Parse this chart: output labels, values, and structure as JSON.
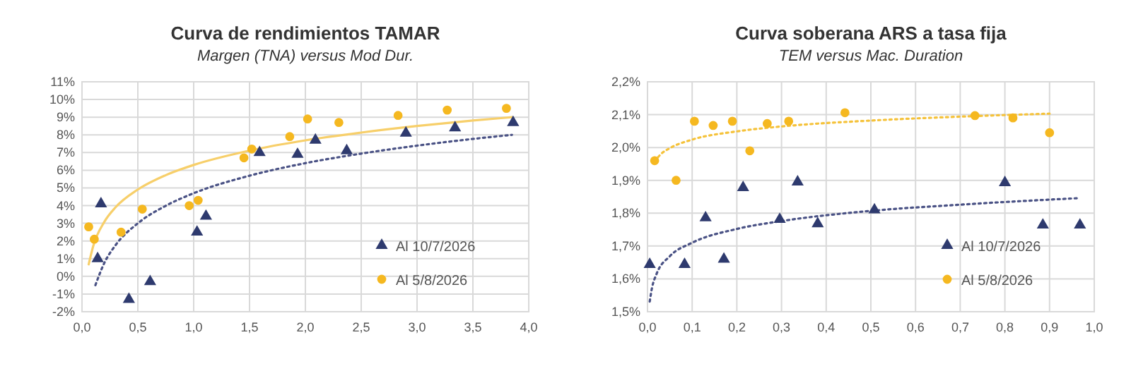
{
  "chart_data": [
    {
      "type": "scatter",
      "title": "Curva de rendimientos TAMAR",
      "subtitle": "Margen (TNA) versus Mod Dur.",
      "xlim": [
        0,
        4
      ],
      "xticks": [
        {
          "value": 0,
          "label": "0,0"
        },
        {
          "value": 0.5,
          "label": "0,5"
        },
        {
          "value": 1,
          "label": "1,0"
        },
        {
          "value": 1.5,
          "label": "1,5"
        },
        {
          "value": 2,
          "label": "2,0"
        },
        {
          "value": 2.5,
          "label": "2,5"
        },
        {
          "value": 3,
          "label": "3,0"
        },
        {
          "value": 3.5,
          "label": "3,5"
        },
        {
          "value": 4,
          "label": "4,0"
        }
      ],
      "ylim": [
        -2,
        11
      ],
      "yticks": [
        {
          "value": -2,
          "label": "-2%"
        },
        {
          "value": -1,
          "label": "-1%"
        },
        {
          "value": 0,
          "label": "0%"
        },
        {
          "value": 1,
          "label": "1%"
        },
        {
          "value": 2,
          "label": "2%"
        },
        {
          "value": 3,
          "label": "3%"
        },
        {
          "value": 4,
          "label": "4%"
        },
        {
          "value": 5,
          "label": "5%"
        },
        {
          "value": 6,
          "label": "6%"
        },
        {
          "value": 7,
          "label": "7%"
        },
        {
          "value": 8,
          "label": "8%"
        },
        {
          "value": 9,
          "label": "9%"
        },
        {
          "value": 10,
          "label": "10%"
        },
        {
          "value": 11,
          "label": "11%"
        }
      ],
      "grid": true,
      "legend": "bottom right",
      "series": [
        {
          "type": "line",
          "color": "#f7cf6a",
          "line_style": "solid",
          "x": [
            0.06,
            0.1,
            0.2,
            0.3,
            0.5,
            0.75,
            1,
            1.5,
            2,
            2.5,
            3,
            3.5,
            3.85
          ],
          "values": [
            0.68,
            1.7,
            3.08,
            3.9,
            4.91,
            5.72,
            6.3,
            7.11,
            7.69,
            8.13,
            8.5,
            8.81,
            9.0
          ]
        },
        {
          "type": "line",
          "color": "#4a5285",
          "line_style": "dotted",
          "x": [
            0.12,
            0.2,
            0.3,
            0.5,
            0.75,
            1,
            1.5,
            2,
            2.5,
            3,
            3.5,
            3.85
          ],
          "values": [
            -0.5,
            0.76,
            1.76,
            3.0,
            3.99,
            4.7,
            5.69,
            6.4,
            6.94,
            7.39,
            7.77,
            8.0
          ]
        },
        {
          "name": "Al 10/7/2026",
          "marker": "triangle",
          "color": "#2e3a6e",
          "x": [
            0.14,
            0.17,
            0.42,
            0.61,
            1.03,
            1.11,
            1.59,
            1.93,
            2.09,
            2.37,
            2.9,
            3.34,
            3.86
          ],
          "values": [
            1.0,
            4.1,
            -1.3,
            -0.3,
            2.5,
            3.4,
            7.0,
            6.9,
            7.7,
            7.1,
            8.1,
            8.4,
            8.7
          ]
        },
        {
          "name": "Al 5/8/2026",
          "marker": "circle",
          "color": "#f5b820",
          "x": [
            0.06,
            0.11,
            0.35,
            0.54,
            0.96,
            1.04,
            1.45,
            1.52,
            1.86,
            2.02,
            2.3,
            2.83,
            3.27,
            3.8
          ],
          "values": [
            2.8,
            2.1,
            2.5,
            3.8,
            4.0,
            4.3,
            6.7,
            7.2,
            7.9,
            8.9,
            8.7,
            9.1,
            9.4,
            9.5
          ]
        }
      ]
    },
    {
      "type": "scatter",
      "title": "Curva soberana ARS a tasa fija",
      "subtitle": "TEM versus Mac. Duration",
      "xlim": [
        0,
        1
      ],
      "xticks": [
        {
          "value": 0,
          "label": "0,0"
        },
        {
          "value": 0.1,
          "label": "0,1"
        },
        {
          "value": 0.2,
          "label": "0,2"
        },
        {
          "value": 0.3,
          "label": "0,3"
        },
        {
          "value": 0.4,
          "label": "0,4"
        },
        {
          "value": 0.5,
          "label": "0,5"
        },
        {
          "value": 0.6,
          "label": "0,6"
        },
        {
          "value": 0.7,
          "label": "0,7"
        },
        {
          "value": 0.8,
          "label": "0,8"
        },
        {
          "value": 0.9,
          "label": "0,9"
        },
        {
          "value": 1,
          "label": "1,0"
        }
      ],
      "ylim": [
        1.5,
        2.2
      ],
      "yticks": [
        {
          "value": 1.5,
          "label": "1,5%"
        },
        {
          "value": 1.6,
          "label": "1,6%"
        },
        {
          "value": 1.7,
          "label": "1,7%"
        },
        {
          "value": 1.8,
          "label": "1,8%"
        },
        {
          "value": 1.9,
          "label": "1,9%"
        },
        {
          "value": 2.0,
          "label": "2,0%"
        },
        {
          "value": 2.1,
          "label": "2,1%"
        },
        {
          "value": 2.2,
          "label": "2,2%"
        }
      ],
      "grid": true,
      "legend": "bottom right",
      "series": [
        {
          "type": "line",
          "color": "#f5c23a",
          "line_style": "dotted",
          "x": [
            0.016,
            0.03,
            0.05,
            0.1,
            0.2,
            0.3,
            0.5,
            0.7,
            0.9
          ],
          "values": [
            1.957,
            1.98,
            1.998,
            2.024,
            2.049,
            2.064,
            2.082,
            2.094,
            2.103
          ]
        },
        {
          "type": "line",
          "color": "#4a5285",
          "line_style": "dotted",
          "x": [
            0.005,
            0.01,
            0.02,
            0.05,
            0.1,
            0.2,
            0.3,
            0.5,
            0.7,
            0.968
          ],
          "values": [
            1.531,
            1.572,
            1.614,
            1.669,
            1.71,
            1.752,
            1.776,
            1.807,
            1.826,
            1.846
          ]
        },
        {
          "name": "Al 10/7/2026",
          "marker": "triangle",
          "color": "#2e3a6e",
          "x": [
            0.005,
            0.083,
            0.13,
            0.171,
            0.214,
            0.296,
            0.336,
            0.381,
            0.508,
            0.8,
            0.885,
            0.968
          ],
          "values": [
            1.644,
            1.644,
            1.786,
            1.66,
            1.878,
            1.781,
            1.895,
            1.768,
            1.81,
            1.893,
            1.764,
            1.764
          ]
        },
        {
          "name": "Al 5/8/2026",
          "marker": "circle",
          "color": "#f5b820",
          "x": [
            0.016,
            0.064,
            0.105,
            0.147,
            0.19,
            0.229,
            0.268,
            0.316,
            0.442,
            0.733,
            0.818,
            0.9
          ],
          "values": [
            1.96,
            1.9,
            2.08,
            2.067,
            2.08,
            1.99,
            2.073,
            2.08,
            2.106,
            2.097,
            2.09,
            2.045
          ]
        }
      ]
    }
  ]
}
